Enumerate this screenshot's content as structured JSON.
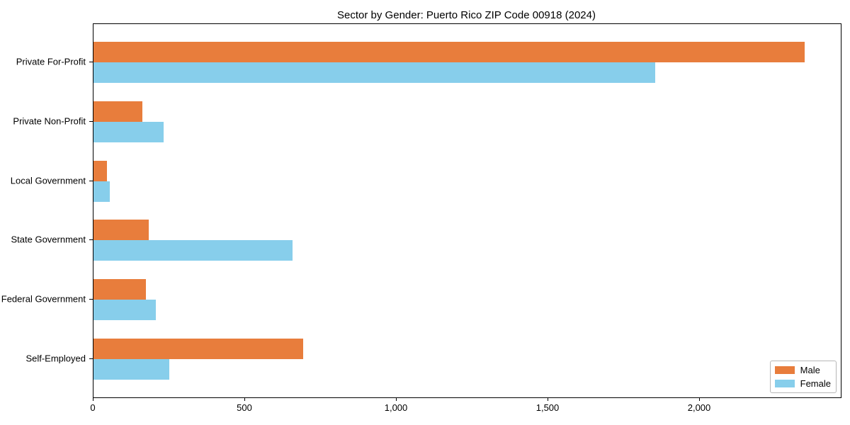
{
  "chart_data": {
    "type": "bar",
    "orientation": "horizontal",
    "title": "Sector by Gender: Puerto Rico ZIP Code 00918 (2024)",
    "categories": [
      "Private For-Profit",
      "Private Non-Profit",
      "Local Government",
      "State Government",
      "Federal Government",
      "Self-Employed"
    ],
    "series": [
      {
        "name": "Male",
        "color": "#e87d3c",
        "values": [
          2345,
          161,
          44,
          182,
          173,
          691
        ]
      },
      {
        "name": "Female",
        "color": "#87ceeb",
        "values": [
          1853,
          231,
          54,
          656,
          206,
          250
        ]
      }
    ],
    "xlabel": "",
    "ylabel": "",
    "xlim": [
      0,
      2465
    ],
    "xticks": [
      0,
      500,
      1000,
      1500,
      2000
    ],
    "xtick_labels": [
      "0",
      "500",
      "1,000",
      "1,500",
      "2,000"
    ],
    "grid": false,
    "legend_position": "lower right",
    "spines": "all",
    "background_color": "#ffffff",
    "text_color": "#000000"
  }
}
